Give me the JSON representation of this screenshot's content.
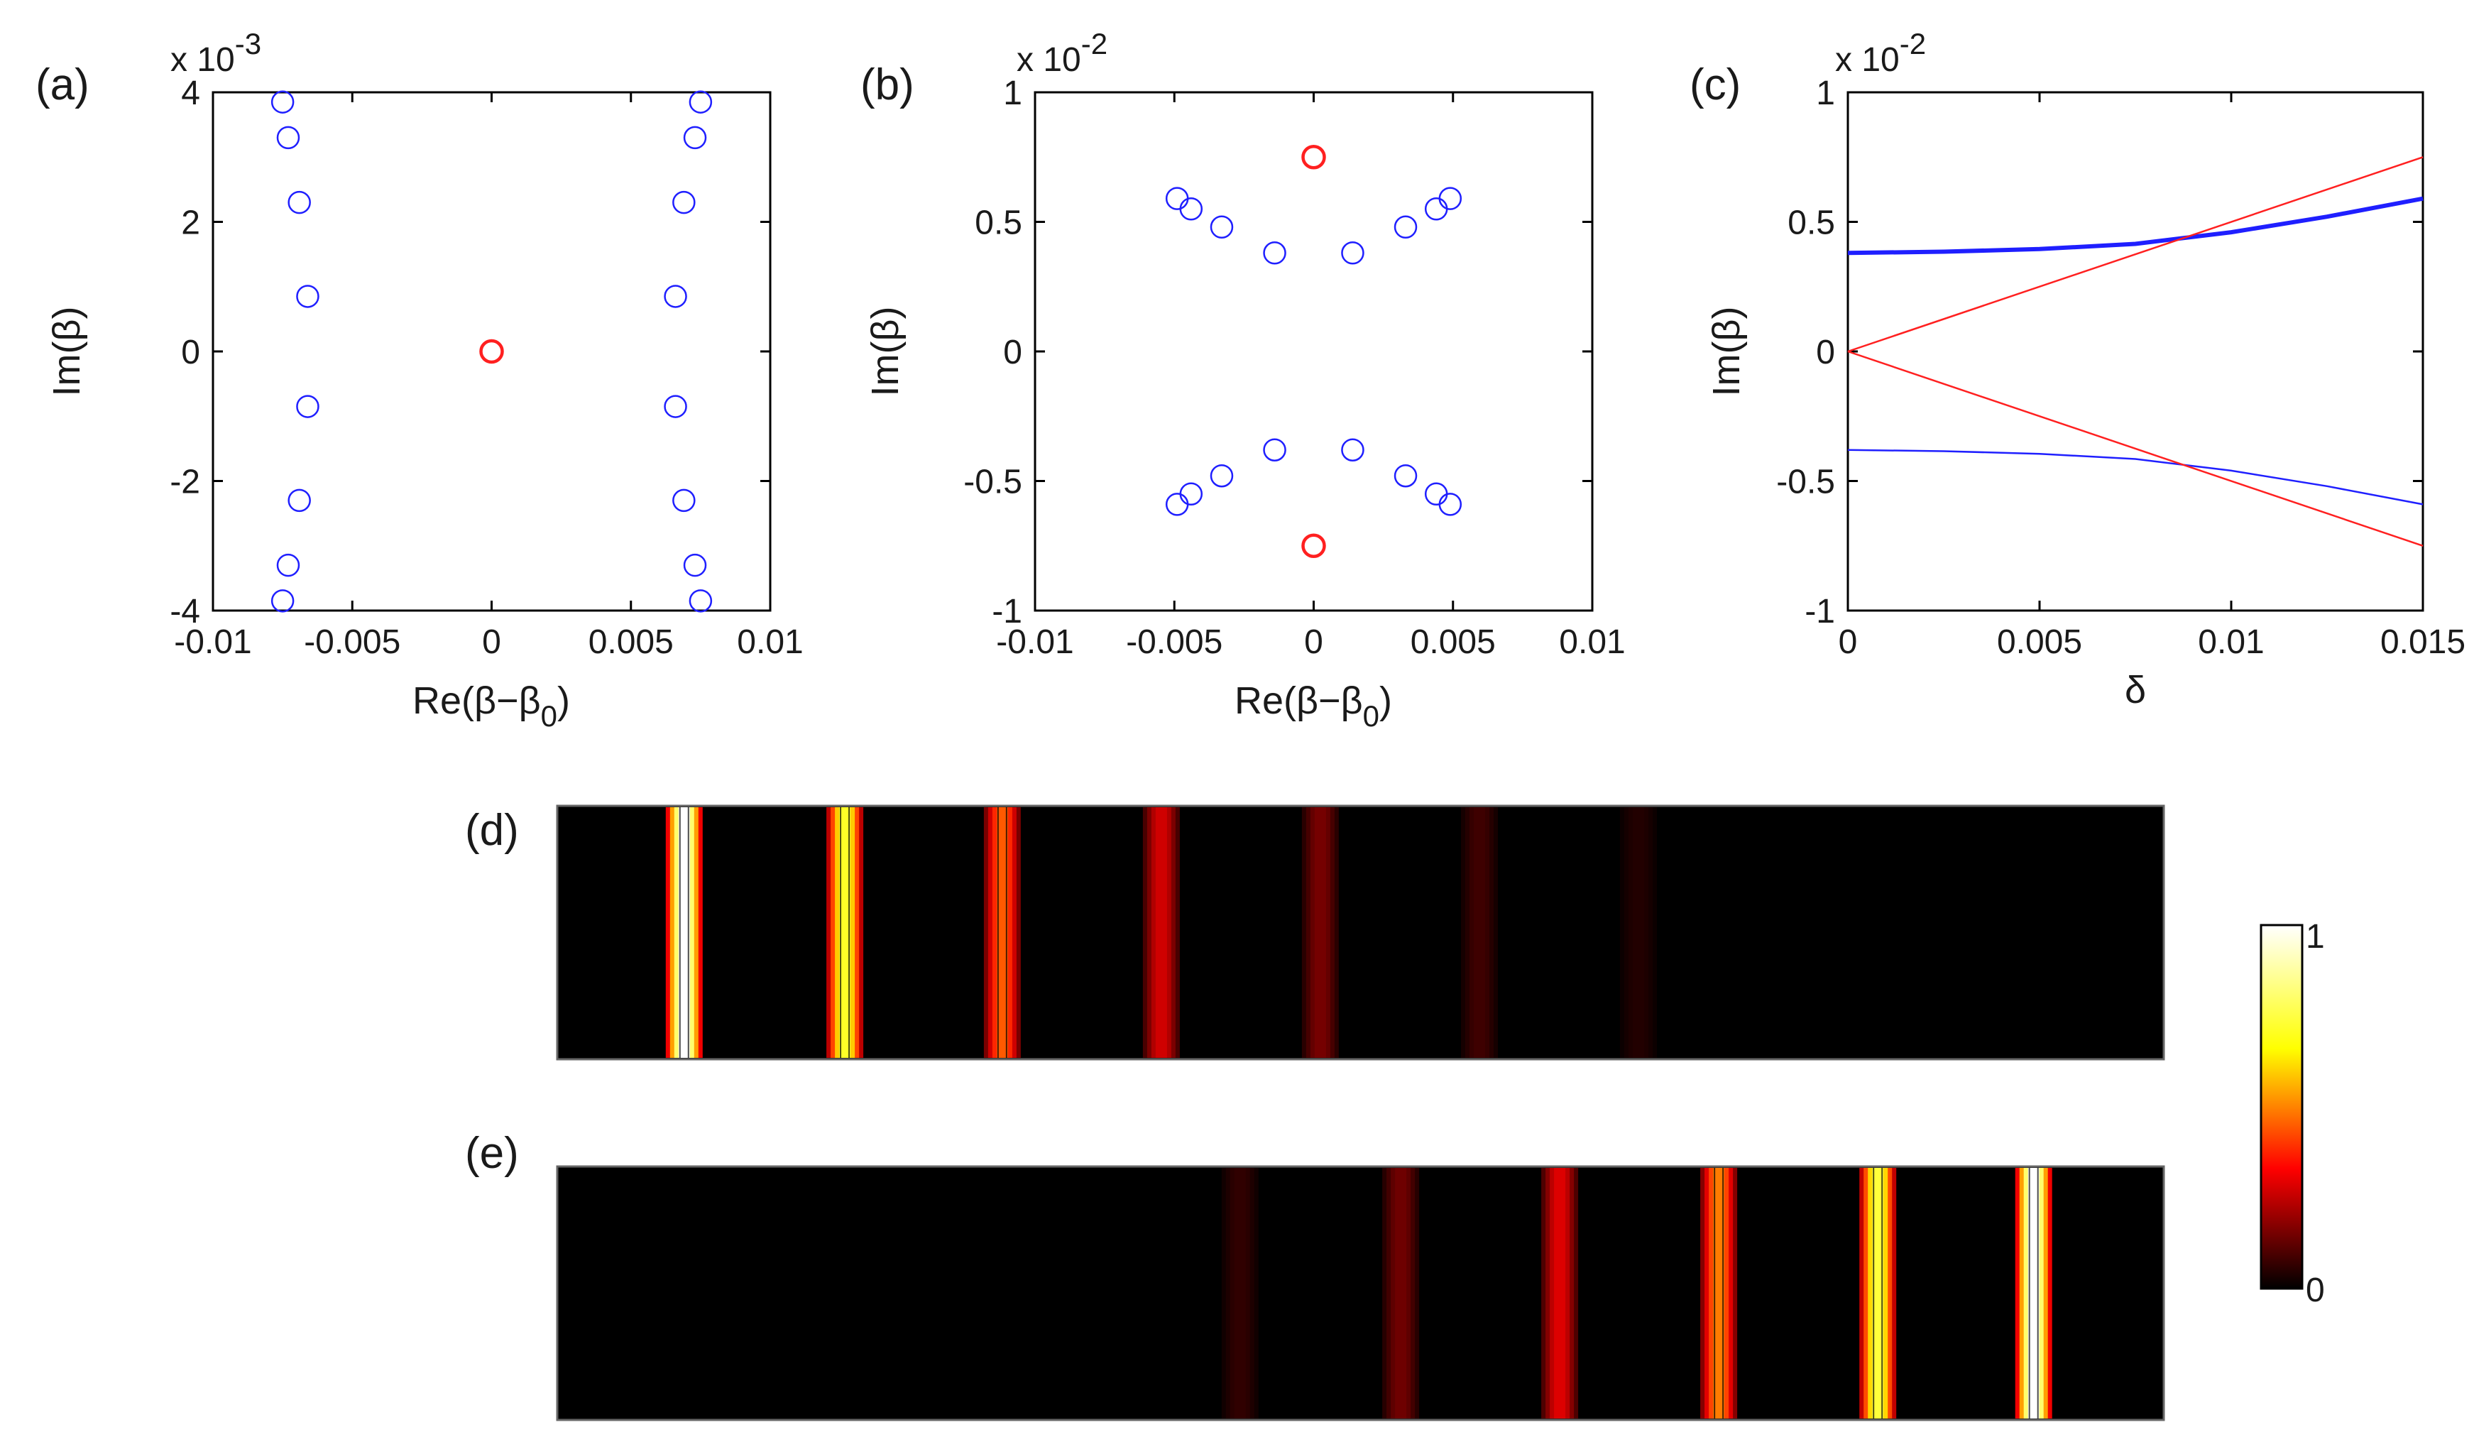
{
  "colors": {
    "blue": "#1f1fff",
    "red": "#ff2020",
    "axis": "#000000",
    "background": "#000000"
  },
  "chart_data": [
    {
      "id": "a",
      "panel_label": "(a)",
      "type": "scatter",
      "exponent_label": "x 10",
      "exponent_sup": "-3",
      "xlabel": "Re(β−β0)",
      "xlabel_main": "Re(β−β",
      "xlabel_sub": "0",
      "xlabel_close": ")",
      "ylabel": "Im(β)",
      "xlim": [
        -0.01,
        0.01
      ],
      "ylim": [
        -4,
        4
      ],
      "xticks": [
        -0.01,
        -0.005,
        0,
        0.005,
        0.01
      ],
      "xtick_labels": [
        "-0.01",
        "-0.005",
        "0",
        "0.005",
        "0.01"
      ],
      "yticks": [
        -4,
        -2,
        0,
        2,
        4
      ],
      "ytick_labels": [
        "-4",
        "-2",
        "0",
        "2",
        "4"
      ],
      "series": [
        {
          "name": "blue modes",
          "color": "#1f1fff",
          "points": [
            [
              -0.0075,
              3.85
            ],
            [
              -0.0073,
              3.3
            ],
            [
              -0.0069,
              2.3
            ],
            [
              -0.0066,
              0.85
            ],
            [
              -0.0066,
              -0.85
            ],
            [
              -0.0069,
              -2.3
            ],
            [
              -0.0073,
              -3.3
            ],
            [
              -0.0075,
              -3.85
            ],
            [
              0.0075,
              3.85
            ],
            [
              0.0073,
              3.3
            ],
            [
              0.0069,
              2.3
            ],
            [
              0.0066,
              0.85
            ],
            [
              0.0066,
              -0.85
            ],
            [
              0.0069,
              -2.3
            ],
            [
              0.0073,
              -3.3
            ],
            [
              0.0075,
              -3.85
            ]
          ]
        },
        {
          "name": "red mode",
          "color": "#ff2020",
          "points": [
            [
              0,
              0
            ]
          ]
        }
      ]
    },
    {
      "id": "b",
      "panel_label": "(b)",
      "type": "scatter",
      "exponent_label": "x 10",
      "exponent_sup": "-2",
      "xlabel": "Re(β−β0)",
      "xlabel_main": "Re(β−β",
      "xlabel_sub": "0",
      "xlabel_close": ")",
      "ylabel": "Im(β)",
      "xlim": [
        -0.01,
        0.01
      ],
      "ylim": [
        -1,
        1
      ],
      "xticks": [
        -0.01,
        -0.005,
        0,
        0.005,
        0.01
      ],
      "xtick_labels": [
        "-0.01",
        "-0.005",
        "0",
        "0.005",
        "0.01"
      ],
      "yticks": [
        -1,
        -0.5,
        0,
        0.5,
        1
      ],
      "ytick_labels": [
        "-1",
        "-0.5",
        "0",
        "0.5",
        "1"
      ],
      "series": [
        {
          "name": "blue modes",
          "color": "#1f1fff",
          "points": [
            [
              -0.0049,
              0.59
            ],
            [
              -0.0044,
              0.55
            ],
            [
              -0.0033,
              0.48
            ],
            [
              -0.0014,
              0.38
            ],
            [
              0.0014,
              0.38
            ],
            [
              0.0033,
              0.48
            ],
            [
              0.0044,
              0.55
            ],
            [
              0.0049,
              0.59
            ],
            [
              -0.0049,
              -0.59
            ],
            [
              -0.0044,
              -0.55
            ],
            [
              -0.0033,
              -0.48
            ],
            [
              -0.0014,
              -0.38
            ],
            [
              0.0014,
              -0.38
            ],
            [
              0.0033,
              -0.48
            ],
            [
              0.0044,
              -0.55
            ],
            [
              0.0049,
              -0.59
            ]
          ]
        },
        {
          "name": "red modes",
          "color": "#ff2020",
          "points": [
            [
              0,
              0.75
            ],
            [
              0,
              -0.75
            ]
          ]
        }
      ]
    },
    {
      "id": "c",
      "panel_label": "(c)",
      "type": "line",
      "exponent_label": "x 10",
      "exponent_sup": "-2",
      "xlabel": "δ",
      "ylabel": "Im(β)",
      "xlim": [
        0,
        0.015
      ],
      "ylim": [
        -1,
        1
      ],
      "xticks": [
        0,
        0.005,
        0.01,
        0.015
      ],
      "xtick_labels": [
        "0",
        "0.005",
        "0.01",
        "0.015"
      ],
      "yticks": [
        -1,
        -0.5,
        0,
        0.5,
        1
      ],
      "ytick_labels": [
        "-1",
        "-0.5",
        "0",
        "0.5",
        "1"
      ],
      "series": [
        {
          "name": "blue upper",
          "color": "#1f1fff",
          "weight": "thick",
          "x": [
            0,
            0.0025,
            0.005,
            0.0075,
            0.01,
            0.0125,
            0.015
          ],
          "y": [
            0.38,
            0.385,
            0.395,
            0.415,
            0.46,
            0.52,
            0.59
          ]
        },
        {
          "name": "blue lower",
          "color": "#1f1fff",
          "weight": "thin",
          "x": [
            0,
            0.0025,
            0.005,
            0.0075,
            0.01,
            0.0125,
            0.015
          ],
          "y": [
            -0.38,
            -0.385,
            -0.395,
            -0.415,
            -0.46,
            -0.52,
            -0.59
          ]
        },
        {
          "name": "red upper",
          "color": "#ff2020",
          "weight": "thin",
          "x": [
            0,
            0.015
          ],
          "y": [
            0,
            0.75
          ]
        },
        {
          "name": "red lower",
          "color": "#ff2020",
          "weight": "thin",
          "x": [
            0,
            0.015
          ],
          "y": [
            0,
            -0.75
          ]
        }
      ]
    },
    {
      "id": "d",
      "panel_label": "(d)",
      "type": "heatmap",
      "description_stripes": "bright vertical stripes, decaying from left",
      "stripes": [
        {
          "position": 0.079,
          "intensity": 1.0
        },
        {
          "position": 0.179,
          "intensity": 0.78
        },
        {
          "position": 0.277,
          "intensity": 0.5
        },
        {
          "position": 0.376,
          "intensity": 0.3
        },
        {
          "position": 0.475,
          "intensity": 0.17
        },
        {
          "position": 0.574,
          "intensity": 0.09
        },
        {
          "position": 0.673,
          "intensity": 0.05
        }
      ]
    },
    {
      "id": "e",
      "panel_label": "(e)",
      "type": "heatmap",
      "stripes": [
        {
          "position": 0.425,
          "intensity": 0.07
        },
        {
          "position": 0.525,
          "intensity": 0.16
        },
        {
          "position": 0.624,
          "intensity": 0.32
        },
        {
          "position": 0.723,
          "intensity": 0.55
        },
        {
          "position": 0.822,
          "intensity": 0.8
        },
        {
          "position": 0.919,
          "intensity": 1.0
        }
      ]
    }
  ],
  "colorbar": {
    "min_label": "0",
    "max_label": "1",
    "colormap": "hot"
  }
}
